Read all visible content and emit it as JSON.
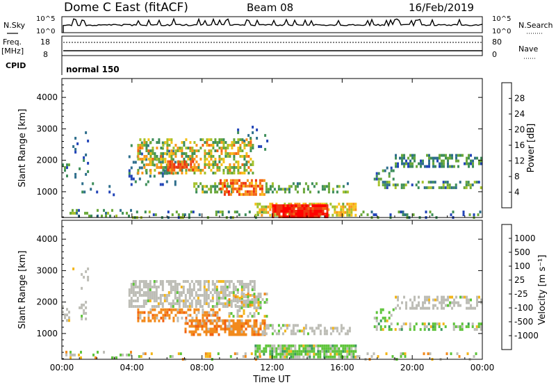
{
  "header": {
    "station": "Dome C East (fitACF)",
    "beam": "Beam 08",
    "date": "16/Feb/2019"
  },
  "status_panels": {
    "nsky_label": "N.Sky",
    "nsearch_label": "N.Search",
    "freq_label": "Freq.",
    "freq_unit": "[MHz]",
    "nave_label": "Nave",
    "cpid_label": "CPID",
    "cpid_value": "normal 150",
    "noise_ticks": [
      "10^5",
      "10^0"
    ],
    "freq_ticks": [
      "18",
      "8"
    ],
    "nave_ticks": [
      "80",
      "0"
    ]
  },
  "chart_data": [
    {
      "type": "heatmap",
      "panel": "power",
      "xlabel": "",
      "ylabel": "Slant Range [km]",
      "xlim": [
        0,
        24
      ],
      "ylim": [
        180,
        4600
      ],
      "x_ticks": [
        "00:00",
        "04:00",
        "08:00",
        "12:00",
        "16:00",
        "20:00",
        "00:00"
      ],
      "y_ticks": [
        1000,
        2000,
        3000,
        4000
      ],
      "colorbar": {
        "label": "Power [dB]",
        "range": [
          0,
          32
        ],
        "ticks": [
          4,
          8,
          12,
          16,
          20,
          24,
          28
        ],
        "colors": [
          "#0000ff",
          "#2345b8",
          "#2e6e8c",
          "#3e8e5a",
          "#6aa83a",
          "#a6c22c",
          "#f6c21a",
          "#f8961c",
          "#f26414",
          "#ee3510",
          "#ff0000"
        ]
      },
      "regions": [
        {
          "t": [
            0.2,
            4.0
          ],
          "r": [
            200,
            450
          ],
          "density": 0.28,
          "level": [
            0.15,
            0.5
          ]
        },
        {
          "t": [
            4.0,
            11.5
          ],
          "r": [
            200,
            400
          ],
          "density": 0.2,
          "level": [
            0.15,
            0.5
          ]
        },
        {
          "t": [
            11.0,
            16.8
          ],
          "r": [
            200,
            650
          ],
          "density": 0.6,
          "level": [
            0.45,
            0.7
          ]
        },
        {
          "t": [
            12.0,
            15.2
          ],
          "r": [
            200,
            600
          ],
          "density": 0.9,
          "level": [
            0.8,
            1.0
          ]
        },
        {
          "t": [
            16.8,
            24.0
          ],
          "r": [
            200,
            400
          ],
          "density": 0.18,
          "level": [
            0.1,
            0.45
          ]
        },
        {
          "t": [
            0.0,
            0.5
          ],
          "r": [
            1400,
            1900
          ],
          "density": 0.4,
          "level": [
            0.1,
            0.4
          ]
        },
        {
          "t": [
            0.6,
            1.5
          ],
          "r": [
            1400,
            3100
          ],
          "density": 0.14,
          "level": [
            0.1,
            0.3
          ]
        },
        {
          "t": [
            1.0,
            3.5
          ],
          "r": [
            900,
            1300
          ],
          "density": 0.05,
          "level": [
            0.1,
            0.3
          ]
        },
        {
          "t": [
            3.8,
            6.5
          ],
          "r": [
            1200,
            2600
          ],
          "density": 0.2,
          "level": [
            0.15,
            0.4
          ]
        },
        {
          "t": [
            4.3,
            11.0
          ],
          "r": [
            1600,
            2700
          ],
          "density": 0.5,
          "level": [
            0.3,
            0.75
          ]
        },
        {
          "t": [
            6.0,
            7.5
          ],
          "r": [
            1650,
            2000
          ],
          "density": 0.6,
          "level": [
            0.7,
            0.9
          ]
        },
        {
          "t": [
            7.5,
            9.8
          ],
          "r": [
            1000,
            1300
          ],
          "density": 0.55,
          "level": [
            0.3,
            0.55
          ]
        },
        {
          "t": [
            9.0,
            11.6
          ],
          "r": [
            900,
            1400
          ],
          "density": 0.6,
          "level": [
            0.6,
            0.92
          ]
        },
        {
          "t": [
            10.0,
            11.8
          ],
          "r": [
            2300,
            3100
          ],
          "density": 0.08,
          "level": [
            0.1,
            0.3
          ]
        },
        {
          "t": [
            11.5,
            16.5
          ],
          "r": [
            1000,
            1300
          ],
          "density": 0.35,
          "level": [
            0.25,
            0.5
          ]
        },
        {
          "t": [
            17.8,
            24.0
          ],
          "r": [
            1100,
            1350
          ],
          "density": 0.4,
          "level": [
            0.15,
            0.5
          ]
        },
        {
          "t": [
            19.0,
            24.0
          ],
          "r": [
            1800,
            2200
          ],
          "density": 0.45,
          "level": [
            0.15,
            0.45
          ]
        },
        {
          "t": [
            17.8,
            19.0
          ],
          "r": [
            1400,
            1800
          ],
          "density": 0.3,
          "level": [
            0.15,
            0.4
          ]
        }
      ]
    },
    {
      "type": "heatmap",
      "panel": "velocity",
      "xlabel": "Time UT",
      "ylabel": "Slant Range [km]",
      "xlim": [
        0,
        24
      ],
      "ylim": [
        180,
        4600
      ],
      "x_ticks": [
        "00:00",
        "04:00",
        "08:00",
        "12:00",
        "16:00",
        "20:00",
        "00:00"
      ],
      "y_ticks": [
        1000,
        2000,
        3000,
        4000
      ],
      "colorbar": {
        "label": "Velocity [m s⁻¹]",
        "ticks": [
          "1000",
          "500",
          "100",
          "25",
          "-25",
          "-100",
          "-500",
          "-1000"
        ],
        "colors": [
          "#1f3cc8",
          "#2b6fae",
          "#3b9a5c",
          "#5ec43a",
          "#bdbdb6",
          "#bdbdb6",
          "#f3b61a",
          "#f28a1c",
          "#f26010",
          "#ff0000"
        ]
      },
      "regions": [
        {
          "t": [
            0.2,
            4.0
          ],
          "r": [
            200,
            450
          ],
          "density": 0.25,
          "class": "mixed"
        },
        {
          "t": [
            4.0,
            11.5
          ],
          "r": [
            200,
            400
          ],
          "density": 0.18,
          "class": "mixed"
        },
        {
          "t": [
            11.0,
            16.8
          ],
          "r": [
            200,
            650
          ],
          "density": 0.85,
          "class": "green"
        },
        {
          "t": [
            16.8,
            24.0
          ],
          "r": [
            200,
            400
          ],
          "density": 0.15,
          "class": "mixed"
        },
        {
          "t": [
            0.0,
            0.5
          ],
          "r": [
            1400,
            1900
          ],
          "density": 0.35,
          "class": "grey"
        },
        {
          "t": [
            0.6,
            1.5
          ],
          "r": [
            1400,
            3100
          ],
          "density": 0.12,
          "class": "grey"
        },
        {
          "t": [
            3.8,
            11.0
          ],
          "r": [
            1800,
            2700
          ],
          "density": 0.6,
          "class": "grey"
        },
        {
          "t": [
            4.3,
            9.0
          ],
          "r": [
            1400,
            1800
          ],
          "density": 0.5,
          "class": "orange"
        },
        {
          "t": [
            7.0,
            11.6
          ],
          "r": [
            900,
            1450
          ],
          "density": 0.7,
          "class": "orange"
        },
        {
          "t": [
            9.5,
            11.8
          ],
          "r": [
            1500,
            2300
          ],
          "density": 0.4,
          "class": "mixed"
        },
        {
          "t": [
            11.5,
            16.5
          ],
          "r": [
            1000,
            1300
          ],
          "density": 0.5,
          "class": "grey"
        },
        {
          "t": [
            17.8,
            24.0
          ],
          "r": [
            1100,
            1350
          ],
          "density": 0.45,
          "class": "green"
        },
        {
          "t": [
            19.0,
            24.0
          ],
          "r": [
            1800,
            2200
          ],
          "density": 0.45,
          "class": "grey"
        },
        {
          "t": [
            17.8,
            19.0
          ],
          "r": [
            1400,
            1800
          ],
          "density": 0.3,
          "class": "green"
        }
      ]
    }
  ]
}
